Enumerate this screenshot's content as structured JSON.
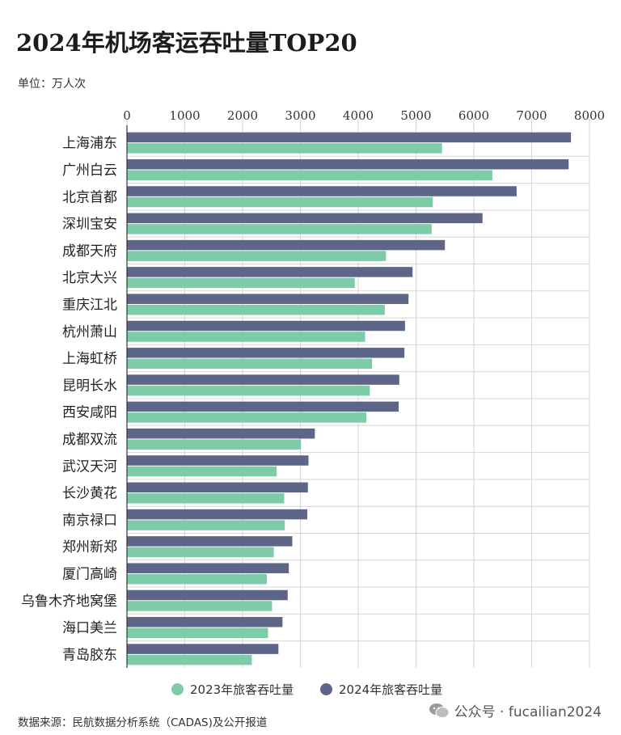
{
  "title": "2024年机场客运吞吐量TOP20",
  "unit_label": "单位：万人次",
  "source": "数据来源：民航数据分析系统（CADAS)及公开报道",
  "wechat": {
    "label": "公众号 · fucailian2024"
  },
  "colors": {
    "series_2023": "#7ecba8",
    "series_2024": "#5d6589",
    "grid": "#d6d6d6",
    "axis": "#333333"
  },
  "chart_data": {
    "type": "bar",
    "orientation": "horizontal",
    "title": "2024年机场客运吞吐量TOP20",
    "unit": "单位：万人次",
    "xlim": [
      0,
      8000
    ],
    "xticks": [
      0,
      1000,
      2000,
      3000,
      4000,
      5000,
      6000,
      7000,
      8000
    ],
    "grid": true,
    "legend_position": "bottom",
    "categories": [
      "上海浦东",
      "广州白云",
      "北京首都",
      "深圳宝安",
      "成都天府",
      "北京大兴",
      "重庆江北",
      "杭州萧山",
      "上海虹桥",
      "昆明长水",
      "西安咸阳",
      "成都双流",
      "武汉天河",
      "长沙黄花",
      "南京禄口",
      "郑州新郑",
      "厦门高崎",
      "乌鲁木齐地窝堡",
      "海口美兰",
      "青岛胶东"
    ],
    "series": [
      {
        "name": "2024年旅客吞吐量",
        "values": [
          7680,
          7640,
          6740,
          6150,
          5500,
          4940,
          4870,
          4810,
          4800,
          4710,
          4700,
          3250,
          3140,
          3130,
          3120,
          2860,
          2800,
          2780,
          2690,
          2620
        ]
      },
      {
        "name": "2023年旅客吞吐量",
        "values": [
          5450,
          6320,
          5290,
          5270,
          4480,
          3940,
          4460,
          4120,
          4240,
          4200,
          4140,
          3010,
          2590,
          2720,
          2730,
          2540,
          2420,
          2510,
          2440,
          2160
        ]
      }
    ]
  }
}
